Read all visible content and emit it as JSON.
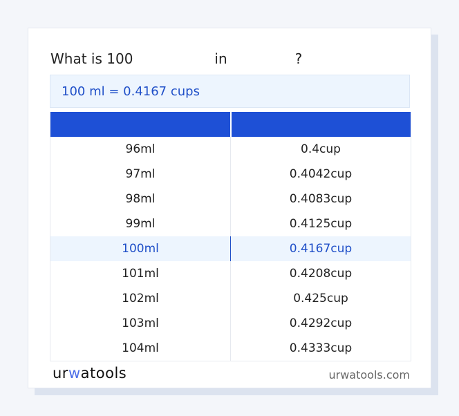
{
  "title": {
    "prefix": "What is 100",
    "middle": "in",
    "suffix": "?"
  },
  "result": "100 ml = 0.4167 cups",
  "table": {
    "headers": [
      "",
      ""
    ],
    "rows": [
      [
        "96ml",
        "0.4cup"
      ],
      [
        "97ml",
        "0.4042cup"
      ],
      [
        "98ml",
        "0.4083cup"
      ],
      [
        "99ml",
        "0.4125cup"
      ],
      [
        "100ml",
        "0.4167cup"
      ],
      [
        "101ml",
        "0.4208cup"
      ],
      [
        "102ml",
        "0.425cup"
      ],
      [
        "103ml",
        "0.4292cup"
      ],
      [
        "104ml",
        "0.4333cup"
      ]
    ],
    "highlighted_index": 4
  },
  "footer": {
    "logo": "urwatools",
    "site": "urwatools.com"
  },
  "colors": {
    "accent": "#1e50d6",
    "highlight_bg": "#edf5fe"
  }
}
